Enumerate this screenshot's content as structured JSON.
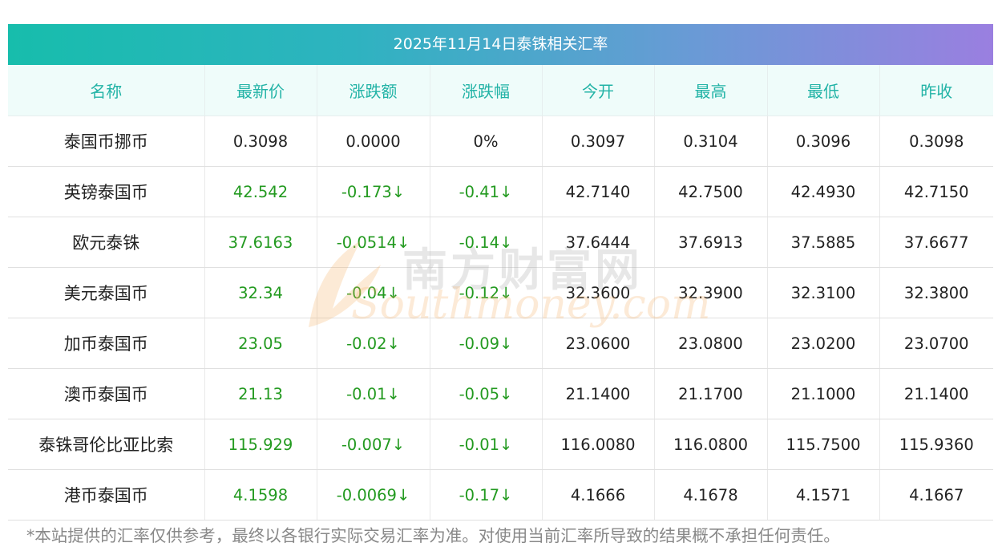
{
  "title": "2025年11月14日泰铢相关汇率",
  "headers": [
    "名称",
    "最新价",
    "涨跌额",
    "涨跌幅",
    "今开",
    "最高",
    "最低",
    "昨收"
  ],
  "rows": [
    [
      "泰国币挪币",
      "0.3098",
      "0.0000",
      "0%",
      "0.3097",
      "0.3104",
      "0.3096",
      "0.3098"
    ],
    [
      "英镑泰国币",
      "42.542",
      "-0.173↓",
      "-0.41↓",
      "42.7140",
      "42.7500",
      "42.4930",
      "42.7150"
    ],
    [
      "欧元泰铢",
      "37.6163",
      "-0.0514↓",
      "-0.14↓",
      "37.6444",
      "37.6913",
      "37.5885",
      "37.6677"
    ],
    [
      "美元泰国币",
      "32.34",
      "-0.04↓",
      "-0.12↓",
      "32.3600",
      "32.3900",
      "32.3100",
      "32.3800"
    ],
    [
      "加币泰国币",
      "23.05",
      "-0.02↓",
      "-0.09↓",
      "23.0600",
      "23.0800",
      "23.0200",
      "23.0700"
    ],
    [
      "澳币泰国币",
      "21.13",
      "-0.01↓",
      "-0.05↓",
      "21.1400",
      "21.1700",
      "21.1000",
      "21.1400"
    ],
    [
      "泰铢哥伦比亚比索",
      "115.929",
      "-0.007↓",
      "-0.01↓",
      "116.0080",
      "116.0800",
      "115.7500",
      "115.9360"
    ],
    [
      "港币泰国币",
      "4.1598",
      "-0.0069↓",
      "-0.17↓",
      "4.1666",
      "4.1678",
      "4.1571",
      "4.1667"
    ]
  ],
  "green_row_flags": [
    false,
    true,
    true,
    true,
    true,
    true,
    true,
    true
  ],
  "note": "*本站提供的汇率仅供参考，最终以各银行实际交易汇率为准。对使用当前汇率所导致的结果概不承担任何责任。",
  "watermark": {
    "cn": "南方财富网",
    "en": "Southmoney.com"
  },
  "colors": {
    "header_text": "#22b3a6",
    "header_bg": "#effcfa",
    "down_green": "#239a20",
    "title_gradient_start": "#17bdac",
    "title_gradient_end": "#9a7fe0"
  }
}
